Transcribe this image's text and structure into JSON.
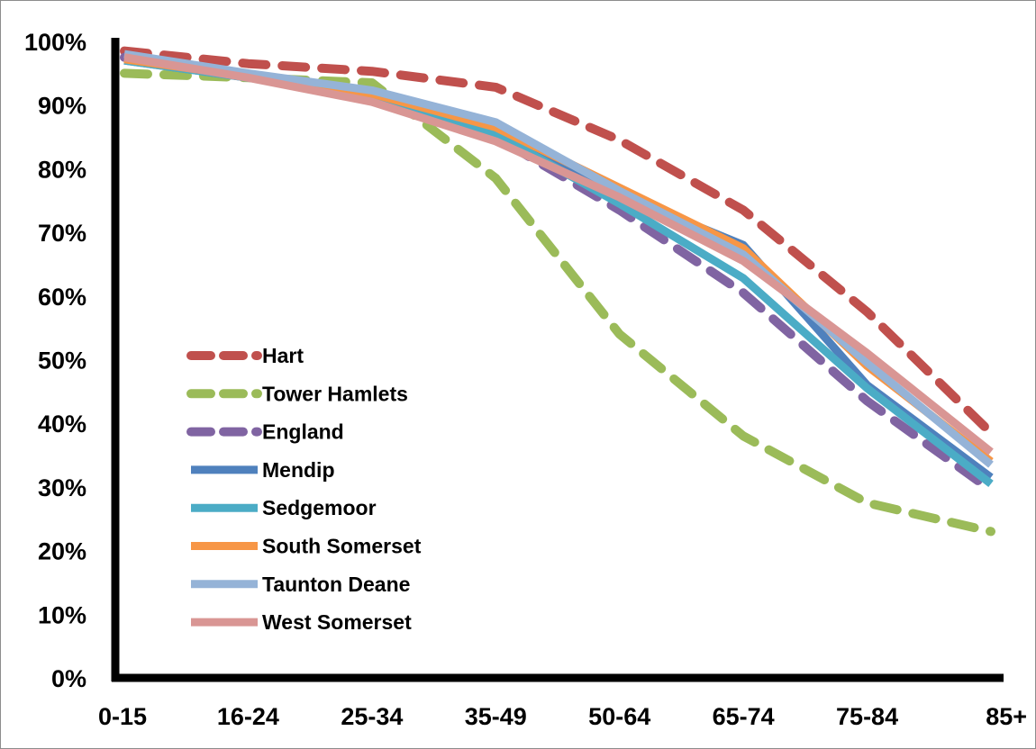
{
  "chart_data": {
    "type": "line",
    "title": "",
    "xlabel": "",
    "ylabel": "",
    "categories": [
      "0-15",
      "16-24",
      "25-34",
      "35-49",
      "50-64",
      "65-74",
      "75-84",
      "85+"
    ],
    "y_ticks": [
      "0%",
      "10%",
      "20%",
      "30%",
      "40%",
      "50%",
      "60%",
      "70%",
      "80%",
      "90%",
      "100%"
    ],
    "ylim": [
      0,
      100
    ],
    "grid": false,
    "legend_position": "left-center",
    "series": [
      {
        "name": "Hart",
        "color": "#c0504d",
        "style": "dashed",
        "values": [
          98.5,
          96.5,
          95.3,
          92.8,
          84.5,
          73.5,
          57.5,
          38.5
        ]
      },
      {
        "name": "Tower Hamlets",
        "color": "#9bbb59",
        "style": "dashed",
        "values": [
          95,
          94.3,
          93.5,
          78.5,
          54,
          38,
          27.5,
          23
        ]
      },
      {
        "name": "England",
        "color": "#8064a2",
        "style": "dashed",
        "values": [
          97.5,
          94.5,
          91.5,
          85,
          73.5,
          60.5,
          43.5,
          29.5
        ]
      },
      {
        "name": "Mendip",
        "color": "#4f81bd",
        "style": "solid",
        "values": [
          97,
          94.3,
          91.5,
          85.5,
          76,
          68,
          46,
          31.5
        ]
      },
      {
        "name": "Sedgemoor",
        "color": "#4bacc6",
        "style": "solid",
        "values": [
          97,
          94.3,
          91.5,
          85.5,
          74.5,
          62.8,
          45.5,
          30.5
        ]
      },
      {
        "name": "South Somerset",
        "color": "#f79646",
        "style": "solid",
        "values": [
          97.2,
          94.5,
          91.8,
          86.5,
          77,
          67.5,
          49,
          34
        ]
      },
      {
        "name": "Taunton Deane",
        "color": "#95b3d7",
        "style": "solid",
        "values": [
          98,
          95,
          92.3,
          87.3,
          76.5,
          66.5,
          49.5,
          33.5
        ]
      },
      {
        "name": "West Somerset",
        "color": "#d99694",
        "style": "solid",
        "values": [
          97.5,
          94.3,
          90.5,
          84.3,
          75.5,
          65.5,
          51,
          35.5
        ]
      }
    ]
  }
}
